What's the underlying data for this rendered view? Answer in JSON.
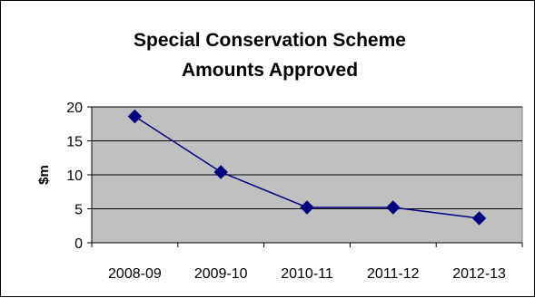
{
  "chart_data": {
    "type": "line",
    "title_lines": [
      "Special Conservation Scheme",
      "Amounts Approved"
    ],
    "ylabel": "$m",
    "xlabel": "",
    "categories": [
      "2008-09",
      "2009-10",
      "2010-11",
      "2011-12",
      "2012-13"
    ],
    "series": [
      {
        "values": [
          18.6,
          10.4,
          5.2,
          5.2,
          3.6
        ]
      }
    ],
    "ylim": [
      0,
      20
    ],
    "yticks": [
      0,
      5,
      10,
      15,
      20
    ],
    "grid": true,
    "legend": "none",
    "colors": {
      "plot_background": "#c0c0c0",
      "line": "#000080",
      "marker": "#000080",
      "gridline": "#000000"
    }
  }
}
